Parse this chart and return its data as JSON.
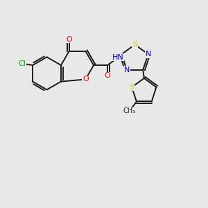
{
  "bg_color": "#e8e8e8",
  "bond_color": "#1a1a1a",
  "atom_colors": {
    "O": "#ff0000",
    "N": "#0000cd",
    "S": "#cccc00",
    "Cl": "#00aa00",
    "C": "#1a1a1a",
    "H": "#777777"
  },
  "font_size": 8.0,
  "label_font_size": 7.0,
  "lw": 1.4
}
